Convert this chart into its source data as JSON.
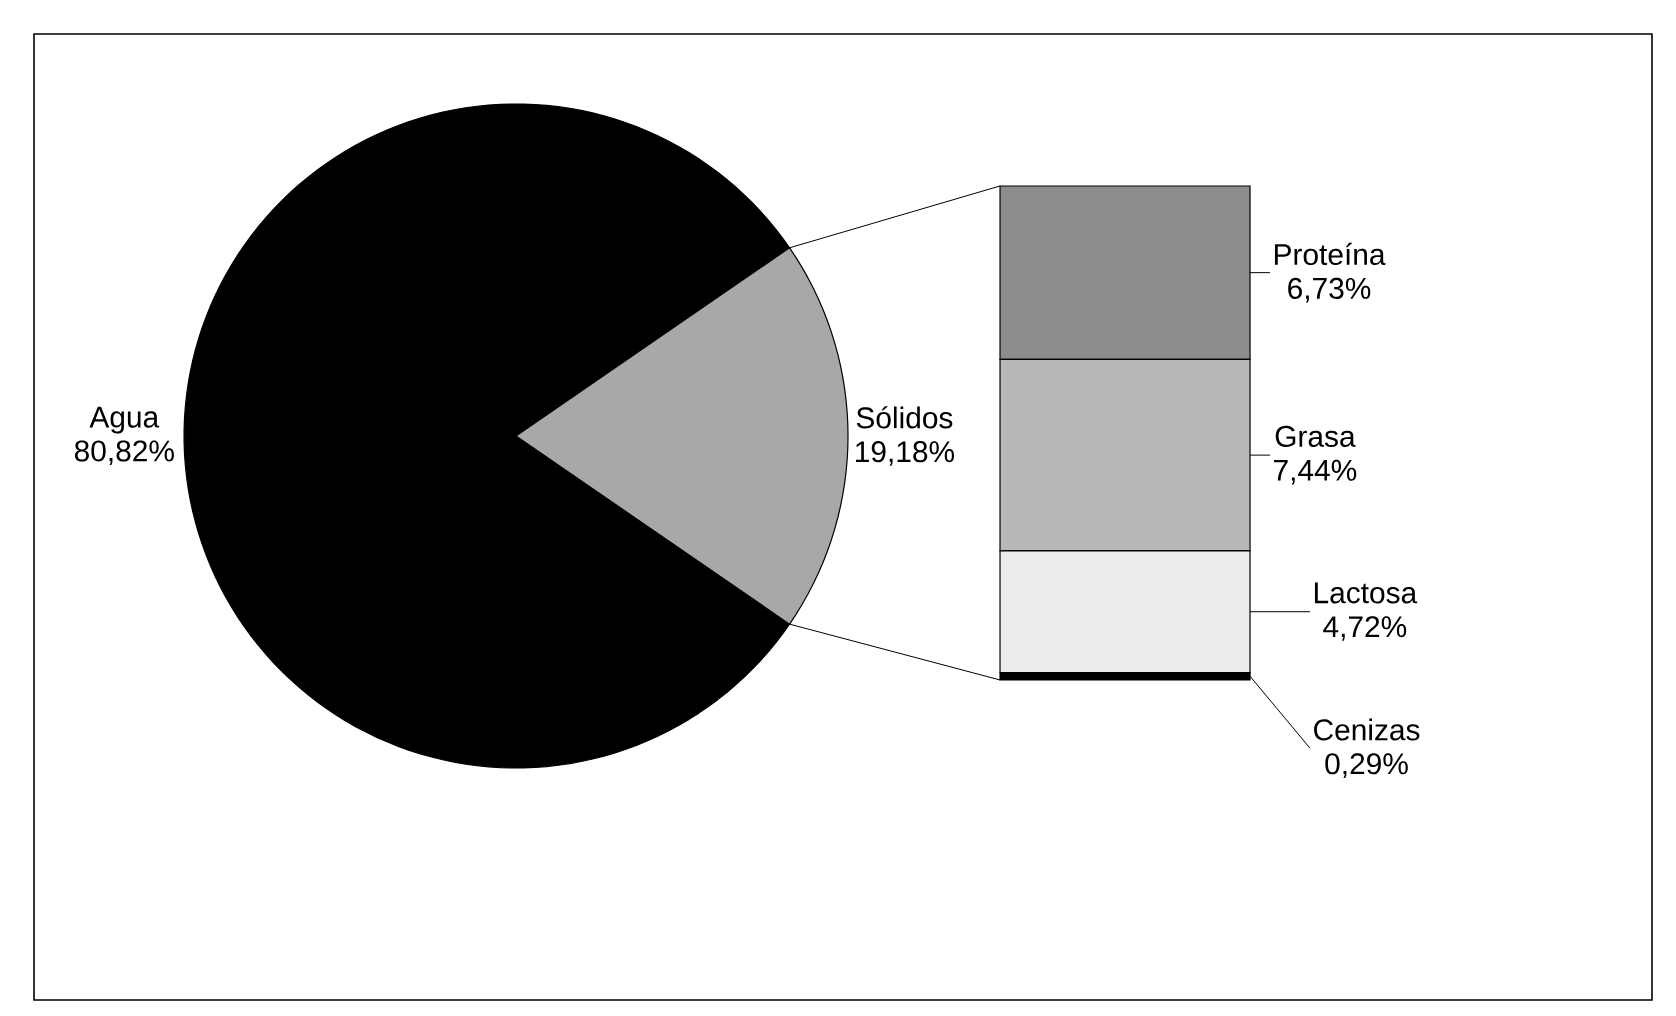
{
  "chart_data": [
    {
      "type": "pie",
      "categories": [
        "Agua",
        "Sólidos"
      ],
      "values": [
        80.82,
        19.18
      ],
      "colors": [
        "#000000",
        "#a8a8a8"
      ],
      "value_labels": [
        "80,82%",
        "19,18%"
      ]
    },
    {
      "type": "bar",
      "stacked": true,
      "categories": [
        null
      ],
      "series": [
        {
          "name": "Cenizas",
          "color": "#000000",
          "values": [
            0.29
          ],
          "value_labels": [
            "0,29%"
          ]
        },
        {
          "name": "Lactosa",
          "color": "#ececec",
          "values": [
            4.72
          ],
          "value_labels": [
            "4,72%"
          ]
        },
        {
          "name": "Grasa",
          "color": "#b8b8b8",
          "values": [
            7.44
          ],
          "value_labels": [
            "7,44%"
          ]
        },
        {
          "name": "Proteína",
          "color": "#8c8c8c",
          "values": [
            6.73
          ],
          "value_labels": [
            "6,73%"
          ]
        }
      ]
    }
  ]
}
